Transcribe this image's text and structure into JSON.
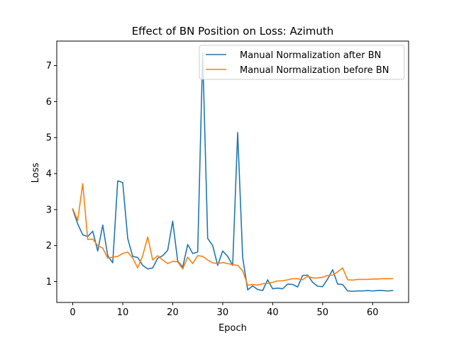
{
  "chart_data": {
    "type": "line",
    "title": "Effect of BN Position on Loss: Azimuth",
    "xlabel": "Epoch",
    "ylabel": "Loss",
    "xlim": [
      -3.2,
      67.2
    ],
    "ylim": [
      0.42,
      7.68
    ],
    "xticks": [
      0,
      10,
      20,
      30,
      40,
      50,
      60
    ],
    "yticks": [
      1,
      2,
      3,
      4,
      5,
      6,
      7
    ],
    "grid": false,
    "legend_position": "top-right",
    "x": [
      0,
      1,
      2,
      3,
      4,
      5,
      6,
      7,
      8,
      9,
      10,
      11,
      12,
      13,
      14,
      15,
      16,
      17,
      18,
      19,
      20,
      21,
      22,
      23,
      24,
      25,
      26,
      27,
      28,
      29,
      30,
      31,
      32,
      33,
      34,
      35,
      36,
      37,
      38,
      39,
      40,
      41,
      42,
      43,
      44,
      45,
      46,
      47,
      48,
      49,
      50,
      51,
      52,
      53,
      54,
      55,
      56,
      57,
      58,
      59,
      60,
      61,
      62,
      63,
      64
    ],
    "series": [
      {
        "name": "Manual Normalization after BN",
        "color": "#1f77b4",
        "values": [
          3.0,
          2.6,
          2.3,
          2.25,
          2.4,
          1.85,
          2.57,
          1.72,
          1.52,
          3.8,
          3.75,
          2.2,
          1.7,
          1.67,
          1.45,
          1.35,
          1.38,
          1.65,
          1.72,
          1.87,
          2.68,
          1.57,
          1.4,
          2.03,
          1.78,
          1.82,
          7.35,
          2.2,
          2.0,
          1.45,
          1.85,
          1.7,
          1.45,
          5.14,
          1.67,
          0.77,
          0.88,
          0.78,
          0.75,
          1.05,
          0.8,
          0.82,
          0.8,
          0.93,
          0.92,
          0.85,
          1.17,
          1.18,
          0.98,
          0.87,
          0.86,
          1.07,
          1.33,
          0.93,
          0.92,
          0.74,
          0.73,
          0.74,
          0.74,
          0.75,
          0.74,
          0.75,
          0.75,
          0.74,
          0.75
        ]
      },
      {
        "name": "Manual Normalization before BN",
        "color": "#ff7f0e",
        "values": [
          3.02,
          2.7,
          3.72,
          2.17,
          2.18,
          2.0,
          1.93,
          1.65,
          1.68,
          1.7,
          1.78,
          1.82,
          1.65,
          1.38,
          1.72,
          2.24,
          1.6,
          1.72,
          1.6,
          1.5,
          1.56,
          1.55,
          1.35,
          1.68,
          1.5,
          1.72,
          1.7,
          1.6,
          1.52,
          1.5,
          1.53,
          1.5,
          1.47,
          1.45,
          1.3,
          0.9,
          0.92,
          0.9,
          0.94,
          0.95,
          0.98,
          1.02,
          1.02,
          1.05,
          1.08,
          1.08,
          1.05,
          1.15,
          1.1,
          1.1,
          1.12,
          1.17,
          1.18,
          1.27,
          1.38,
          1.05,
          1.04,
          1.06,
          1.06,
          1.06,
          1.07,
          1.07,
          1.08,
          1.08,
          1.08
        ]
      }
    ]
  }
}
